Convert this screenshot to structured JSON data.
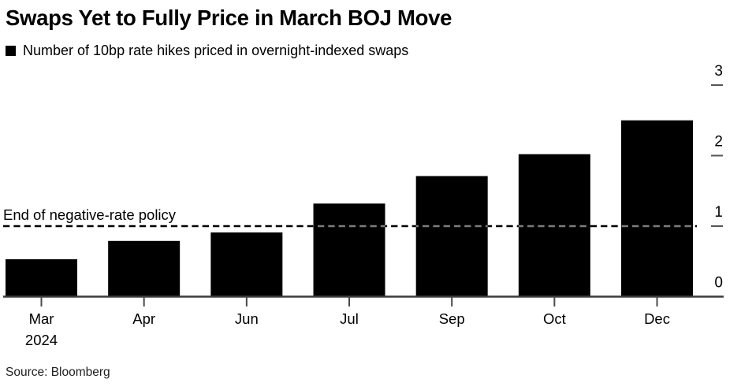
{
  "source": "Source: Bloomberg",
  "chart_data": {
    "type": "bar",
    "title": "Swaps Yet to Fully Price in March BOJ Move",
    "legend": [
      "Number of 10bp rate hikes priced in overnight-indexed swaps"
    ],
    "legend_position": "top-left",
    "categories": [
      "Mar",
      "Apr",
      "Jun",
      "Jul",
      "Sep",
      "Oct",
      "Dec"
    ],
    "x_sublabels": [
      "2024",
      "",
      "",
      "",
      "",
      "",
      ""
    ],
    "values": [
      0.53,
      0.79,
      0.91,
      1.32,
      1.71,
      2.02,
      2.5
    ],
    "ylim": [
      0,
      3
    ],
    "yticks": [
      0,
      1,
      2,
      3
    ],
    "y_axis_side": "right",
    "grid": false,
    "bar_color": "#000000",
    "axis_color": "#3d3d3d",
    "dash_on_bar_color": "#7d7d7d",
    "annotation": {
      "label": "End of negative-rate policy",
      "y": 1,
      "style": "dashed"
    },
    "source_note": "Source: Bloomberg"
  }
}
